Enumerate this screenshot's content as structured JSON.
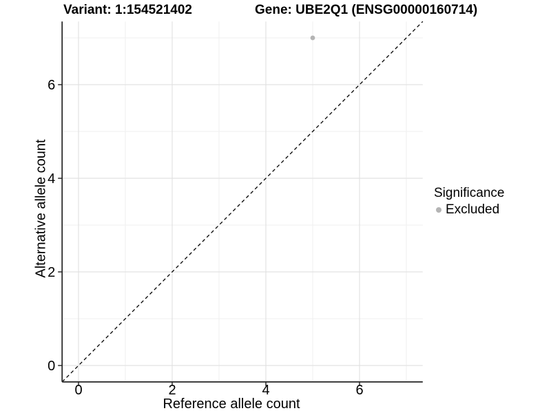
{
  "chart_data": {
    "type": "scatter",
    "title_left": "Variant: 1:154521402",
    "title_right": "Gene: UBE2Q1 (ENSG00000160714)",
    "xlabel": "Reference allele count",
    "ylabel": "Alternative allele count",
    "xlim": [
      -0.35,
      7.35
    ],
    "ylim": [
      -0.35,
      7.35
    ],
    "x_major_ticks": [
      0,
      2,
      4,
      6
    ],
    "y_major_ticks": [
      0,
      2,
      4,
      6
    ],
    "x_minor_ticks": [
      1,
      3,
      5,
      7
    ],
    "y_minor_ticks": [
      1,
      3,
      5,
      7
    ],
    "grid": true,
    "points": [
      {
        "x": 5,
        "y": 7,
        "series": "Excluded"
      }
    ],
    "reference_line": {
      "type": "identity",
      "style": "dashed",
      "from": [
        -0.35,
        -0.35
      ],
      "to": [
        7.35,
        7.35
      ]
    },
    "legend": {
      "title": "Significance",
      "position": "right",
      "items": [
        {
          "label": "Excluded",
          "color": "#b4b4b4",
          "marker": "circle"
        }
      ]
    },
    "colors": {
      "background": "#ffffff",
      "point": "#b4b4b4",
      "grid_major": "#e2e2e2",
      "grid_minor": "#efefef",
      "axis_line": "#2b2b2b",
      "tick_mark": "#2b2b2b",
      "text": "#000000",
      "reference_line": "#000000"
    }
  }
}
